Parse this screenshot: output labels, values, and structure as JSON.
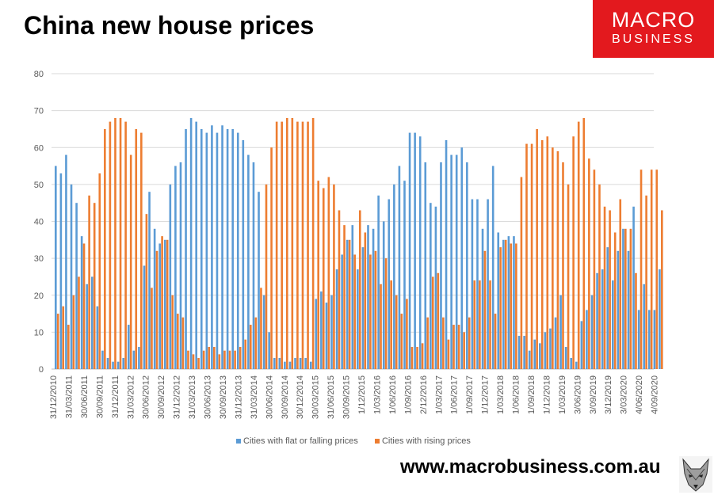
{
  "title": "China new house prices",
  "logo": {
    "line1": "MACRO",
    "line2": "BUSINESS"
  },
  "website": "www.macrobusiness.com.au",
  "colors": {
    "falling": "#5b9bd5",
    "rising": "#ed7d31",
    "logo_bg": "#e3191e",
    "grid": "#d9d9d9",
    "axis_text": "#595959"
  },
  "chart_data": {
    "type": "bar",
    "ylim": [
      0,
      80
    ],
    "yticks": [
      0,
      10,
      20,
      30,
      40,
      50,
      60,
      70,
      80
    ],
    "x_tick_labels": [
      "31/12/2010",
      "31/03/2011",
      "30/06/2011",
      "30/09/2011",
      "31/12/2011",
      "31/03/2012",
      "30/06/2012",
      "30/09/2012",
      "31/12/2012",
      "31/03/2013",
      "30/06/2013",
      "30/09/2013",
      "31/12/2013",
      "31/03/2014",
      "30/06/2014",
      "30/09/2014",
      "30/12/2014",
      "30/03/2015",
      "31/06/2015",
      "30/09/2015",
      "1/12/2015",
      "1/03/2016",
      "1/06/2016",
      "1/09/2016",
      "2/12/2016",
      "1/03/2017",
      "1/06/2017",
      "1/09/2017",
      "1/12/2017",
      "1/03/2018",
      "1/06/2018",
      "1/09/2018",
      "1/12/2018",
      "1/03/2019",
      "3/06/2019",
      "3/09/2019",
      "3/12/2019",
      "3/03/2020",
      "4/06/2020",
      "4/09/2020"
    ],
    "series": [
      {
        "name": "Cities with flat or falling prices",
        "values": [
          55,
          53,
          58,
          50,
          45,
          36,
          23,
          25,
          17,
          5,
          3,
          2,
          2,
          3,
          12,
          5,
          6,
          28,
          48,
          38,
          34,
          35,
          50,
          55,
          56,
          65,
          68,
          67,
          65,
          64,
          66,
          64,
          66,
          65,
          65,
          64,
          62,
          58,
          56,
          48,
          20,
          10,
          3,
          3,
          2,
          2,
          3,
          3,
          3,
          2,
          19,
          21,
          18,
          20,
          27,
          31,
          35,
          39,
          27,
          33,
          39,
          38,
          47,
          40,
          46,
          50,
          55,
          51,
          64,
          64,
          63,
          56,
          45,
          44,
          56,
          62,
          58,
          58,
          60,
          56,
          46,
          46,
          38,
          46,
          55,
          37,
          35,
          36,
          36,
          9,
          9,
          5,
          8,
          7,
          10,
          11,
          14,
          20,
          6,
          3,
          2,
          13,
          16,
          20,
          26,
          27,
          33,
          24,
          32,
          38,
          32,
          44,
          16,
          23,
          16,
          16,
          27
        ]
      },
      {
        "name": "Cities with rising prices",
        "values": [
          15,
          17,
          12,
          20,
          25,
          34,
          47,
          45,
          53,
          65,
          67,
          68,
          68,
          67,
          58,
          65,
          64,
          42,
          22,
          32,
          36,
          35,
          20,
          15,
          14,
          5,
          4,
          3,
          5,
          6,
          6,
          4,
          5,
          5,
          5,
          6,
          8,
          12,
          14,
          22,
          50,
          60,
          67,
          67,
          68,
          68,
          67,
          67,
          67,
          68,
          51,
          49,
          52,
          50,
          43,
          39,
          35,
          31,
          43,
          37,
          31,
          32,
          23,
          30,
          24,
          20,
          15,
          19,
          6,
          6,
          7,
          14,
          25,
          26,
          14,
          8,
          12,
          12,
          10,
          14,
          24,
          24,
          32,
          24,
          15,
          33,
          35,
          34,
          34,
          52,
          61,
          61,
          65,
          62,
          63,
          60,
          59,
          56,
          50,
          63,
          67,
          68,
          57,
          54,
          50,
          44,
          43,
          37,
          46,
          38,
          38,
          26,
          54,
          47,
          54,
          54,
          43
        ]
      }
    ],
    "legend_position": "bottom",
    "grid": true
  }
}
